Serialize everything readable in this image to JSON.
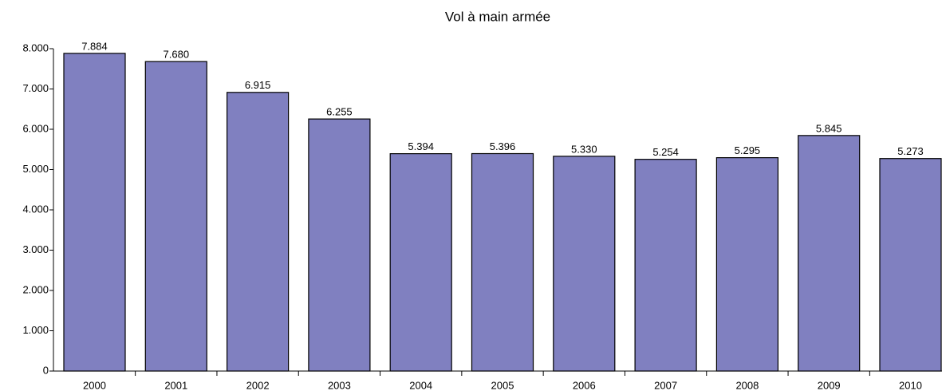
{
  "chart_data": {
    "type": "bar",
    "title": "Vol à main armée",
    "categories": [
      "2000",
      "2001",
      "2002",
      "2003",
      "2004",
      "2005",
      "2006",
      "2007",
      "2008",
      "2009",
      "2010"
    ],
    "values": [
      7884,
      7680,
      6915,
      6255,
      5394,
      5396,
      5330,
      5254,
      5295,
      5845,
      5273
    ],
    "value_labels": [
      "7.884",
      "7.680",
      "6.915",
      "6.255",
      "5.394",
      "5.396",
      "5.330",
      "5.254",
      "5.295",
      "5.845",
      "5.273"
    ],
    "color": "#8080c0",
    "ylim": [
      0,
      8000
    ],
    "yticks": [
      0,
      {
        "value": 1000,
        "label": "1.000"
      },
      {
        "value": 2000,
        "label": "2.000"
      },
      {
        "value": 3000,
        "label": "3.000"
      },
      {
        "value": 4000,
        "label": "4.000"
      },
      {
        "value": 5000,
        "label": "5.000"
      },
      {
        "value": 6000,
        "label": "6.000"
      },
      {
        "value": 7000,
        "label": "7.000"
      },
      {
        "value": 8000,
        "label": "8.000"
      }
    ],
    "grid": false
  }
}
